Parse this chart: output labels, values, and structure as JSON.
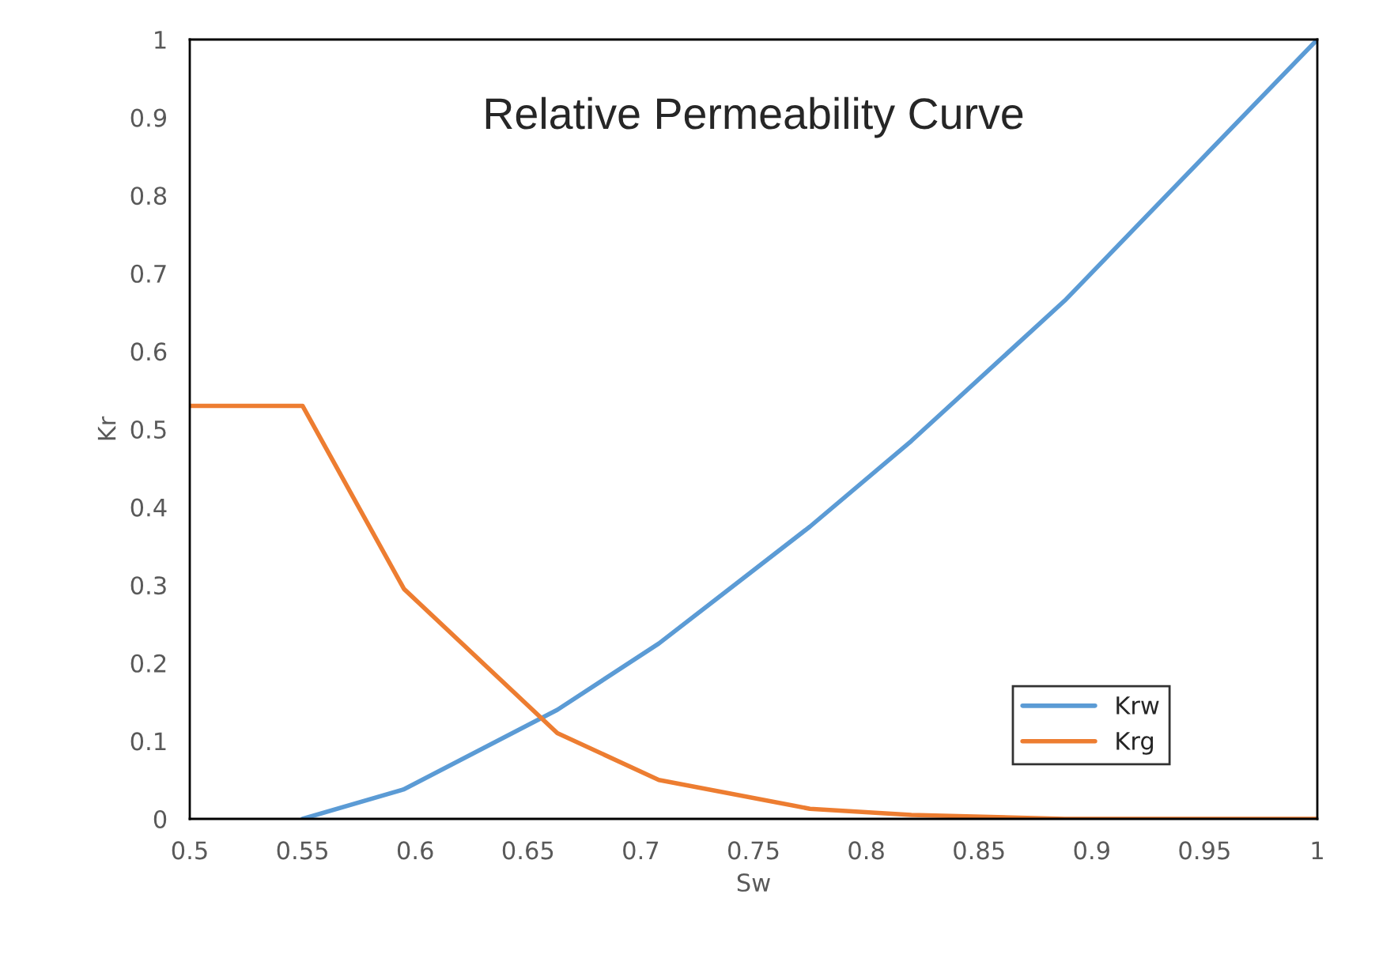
{
  "chart_data": {
    "type": "line",
    "title": "Relative Permeability Curve",
    "xlabel": "Sw",
    "ylabel": "Kr",
    "series": [
      {
        "name": "Krw",
        "color": "#5b9bd5",
        "x": [
          0.55,
          0.595,
          0.663,
          0.708,
          0.775,
          0.82,
          0.888,
          1
        ],
        "values": [
          0,
          0.038,
          0.14,
          0.225,
          0.375,
          0.485,
          0.665,
          1
        ]
      },
      {
        "name": "Krg",
        "color": "#ed7d31",
        "x": [
          0.5,
          0.55,
          0.595,
          0.663,
          0.708,
          0.775,
          0.82,
          0.888,
          1
        ],
        "values": [
          0.53,
          0.53,
          0.295,
          0.11,
          0.05,
          0.013,
          0.005,
          0,
          0
        ]
      }
    ],
    "xlim": [
      0.5,
      1
    ],
    "xticks": [
      0.5,
      0.55,
      0.6,
      0.65,
      0.7,
      0.75,
      0.8,
      0.85,
      0.9,
      0.95,
      1
    ],
    "ylim": [
      0,
      1
    ],
    "yticks": [
      0,
      0.1,
      0.2,
      0.3,
      0.4,
      0.5,
      0.6,
      0.7,
      0.8,
      0.9,
      1
    ],
    "grid": false,
    "legend": "bottom right",
    "marker": "none",
    "line_style": "solid"
  }
}
